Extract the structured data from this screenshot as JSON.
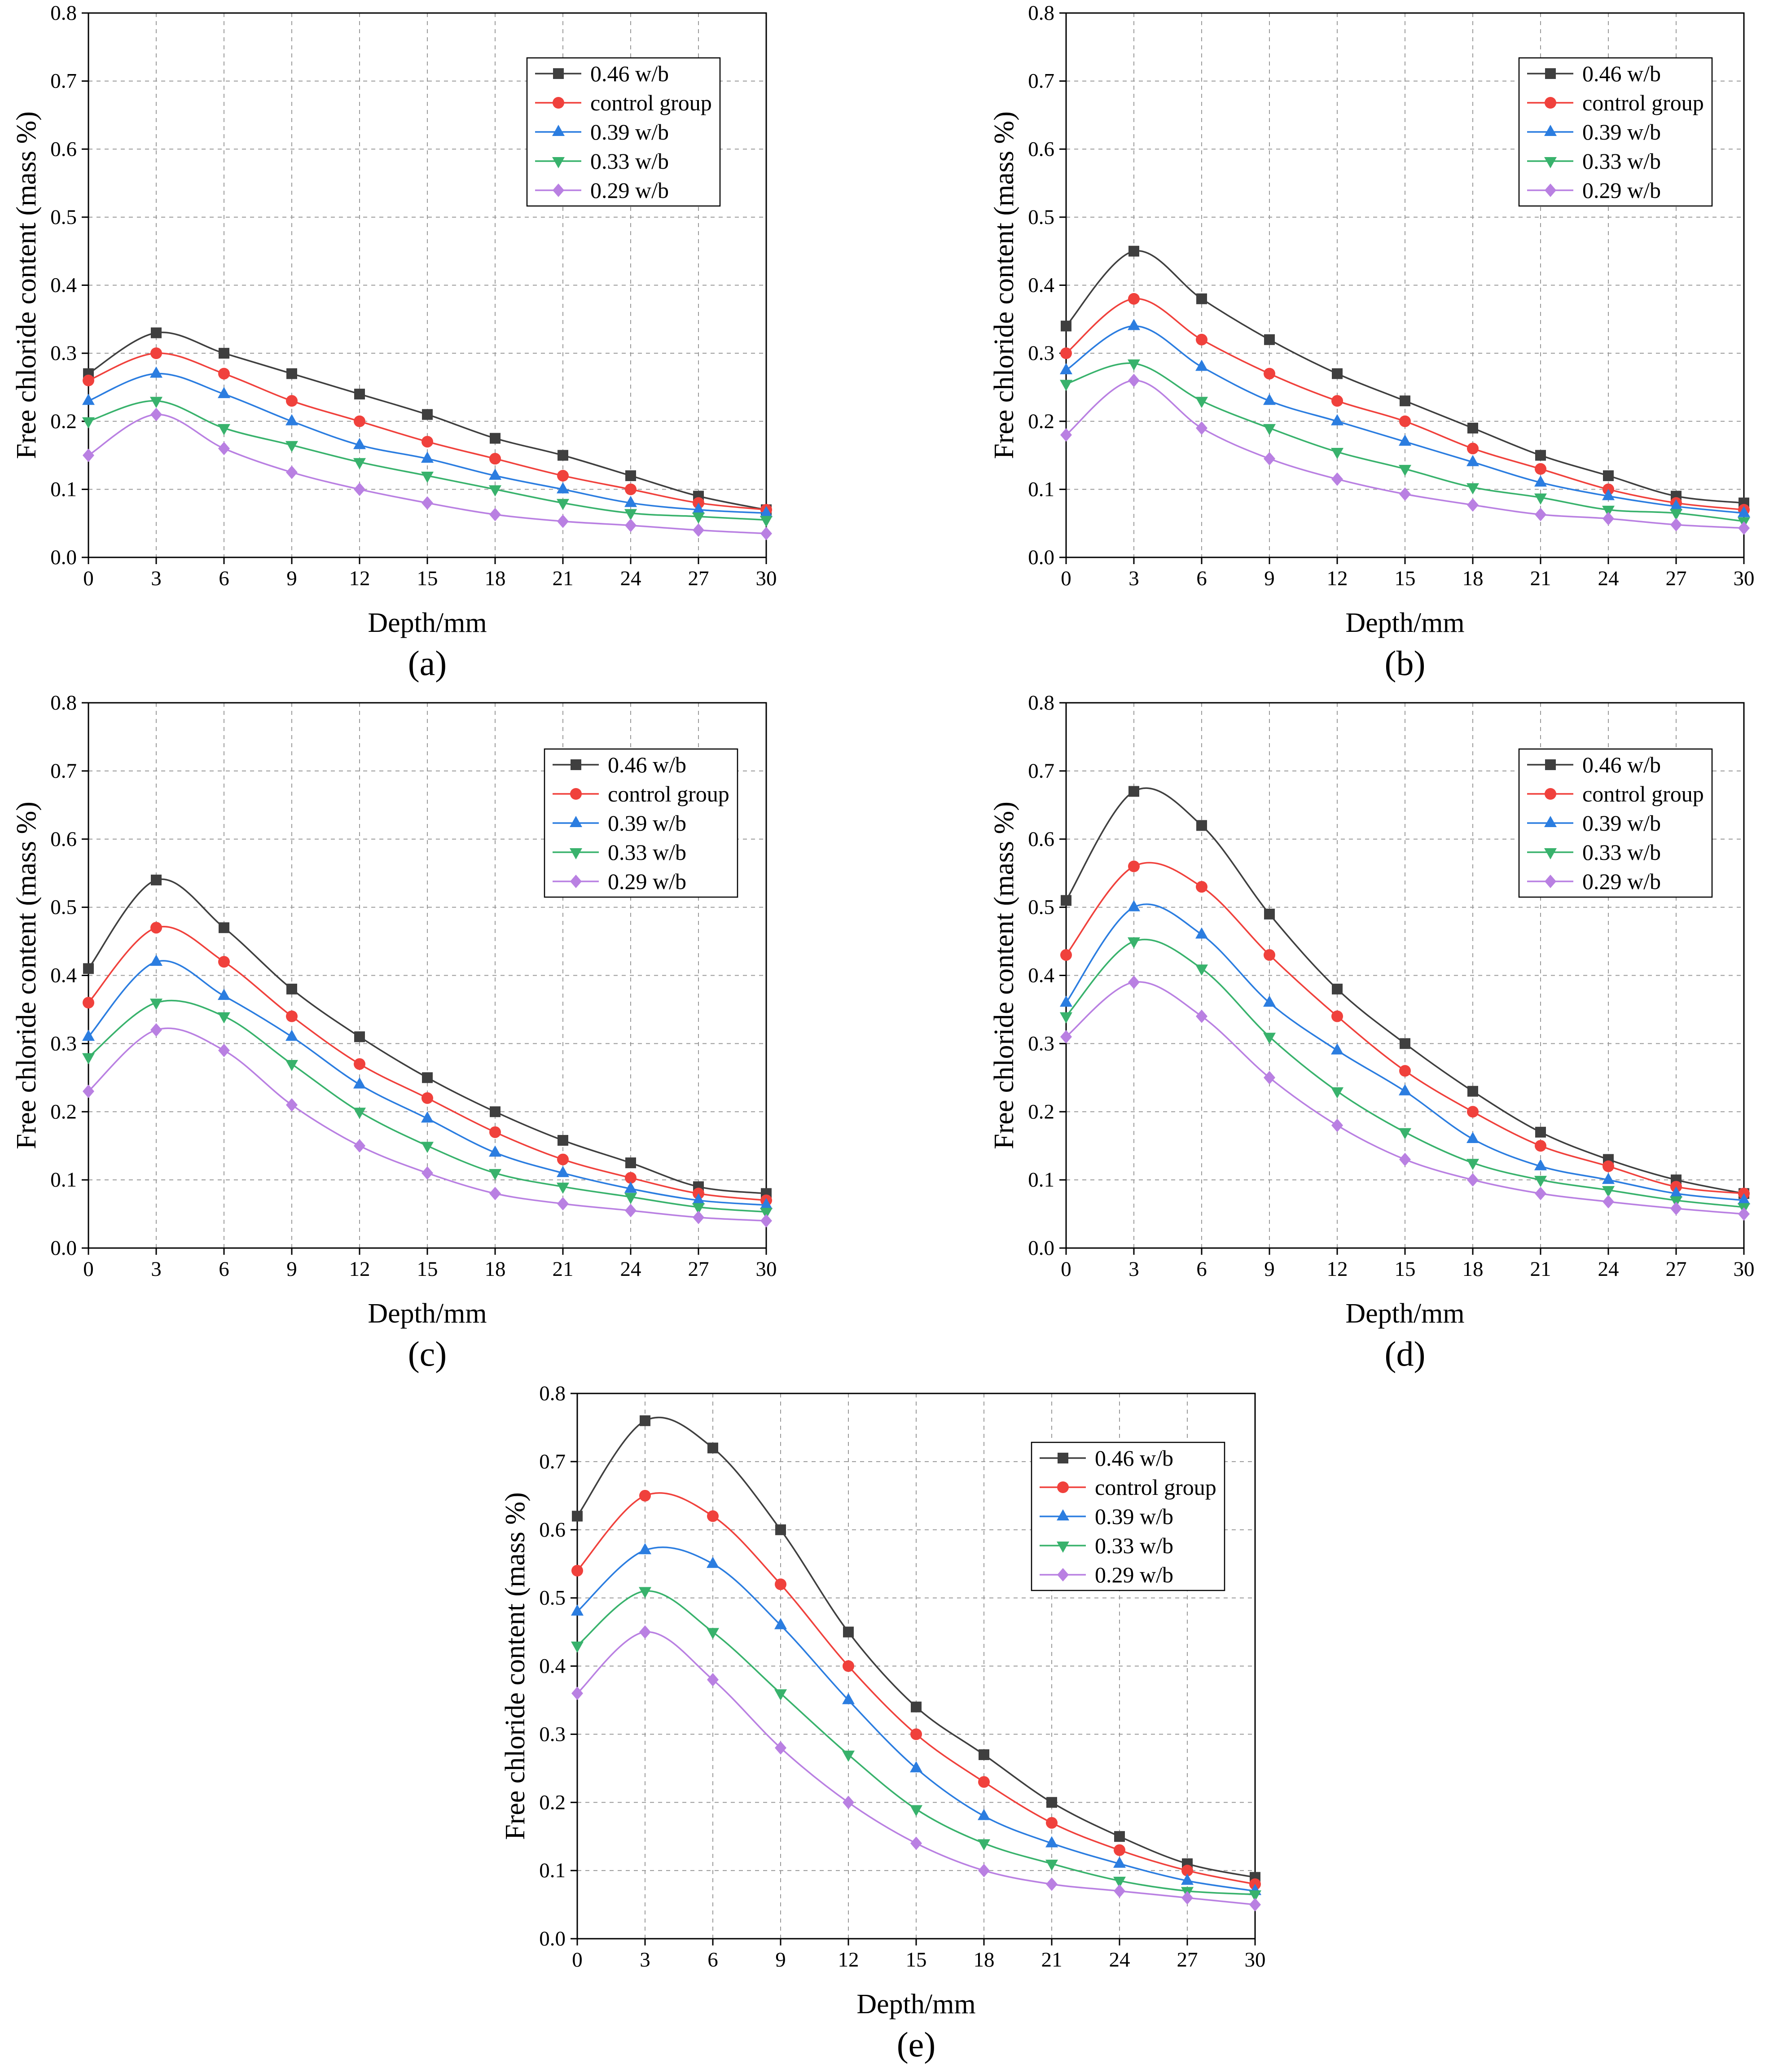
{
  "chart_data": [
    {
      "panel": "(a)",
      "type": "line",
      "xlabel": "Depth/mm",
      "ylabel": "Free chloride content (mass %)",
      "xlim": [
        0,
        30
      ],
      "ylim": [
        0,
        0.8
      ],
      "xticks": [
        "0",
        "3",
        "6",
        "9",
        "12",
        "15",
        "18",
        "21",
        "24",
        "27",
        "30"
      ],
      "yticks": [
        "0.0",
        "0.1",
        "0.2",
        "0.3",
        "0.4",
        "0.5",
        "0.6",
        "0.7",
        "0.8"
      ],
      "grid": true,
      "legend_position": "top-right",
      "x": [
        0,
        3,
        6,
        9,
        12,
        15,
        18,
        21,
        24,
        27,
        30
      ],
      "series": [
        {
          "name": "0.46 w/b",
          "marker": "square",
          "color": "#3f3f3f",
          "values": [
            0.27,
            0.33,
            0.3,
            0.27,
            0.24,
            0.21,
            0.175,
            0.15,
            0.12,
            0.09,
            0.07
          ]
        },
        {
          "name": "control group",
          "marker": "circle",
          "color": "#f0413c",
          "values": [
            0.26,
            0.3,
            0.27,
            0.23,
            0.2,
            0.17,
            0.145,
            0.12,
            0.1,
            0.08,
            0.07
          ]
        },
        {
          "name": "0.39 w/b",
          "marker": "triangle-up",
          "color": "#2b7de0",
          "values": [
            0.23,
            0.27,
            0.24,
            0.2,
            0.165,
            0.145,
            0.12,
            0.1,
            0.08,
            0.07,
            0.065
          ]
        },
        {
          "name": "0.33 w/b",
          "marker": "triangle-down",
          "color": "#38b26c",
          "values": [
            0.2,
            0.23,
            0.19,
            0.165,
            0.14,
            0.12,
            0.1,
            0.08,
            0.065,
            0.06,
            0.055
          ]
        },
        {
          "name": "0.29 w/b",
          "marker": "diamond",
          "color": "#b980e2",
          "values": [
            0.15,
            0.21,
            0.16,
            0.125,
            0.1,
            0.08,
            0.063,
            0.053,
            0.047,
            0.04,
            0.035
          ]
        }
      ]
    },
    {
      "panel": "(b)",
      "type": "line",
      "xlabel": "Depth/mm",
      "ylabel": "Free chloride content (mass %)",
      "xlim": [
        0,
        30
      ],
      "ylim": [
        0,
        0.8
      ],
      "xticks": [
        "0",
        "3",
        "6",
        "9",
        "12",
        "15",
        "18",
        "21",
        "24",
        "27",
        "30"
      ],
      "yticks": [
        "0.0",
        "0.1",
        "0.2",
        "0.3",
        "0.4",
        "0.5",
        "0.6",
        "0.7",
        "0.8"
      ],
      "grid": true,
      "legend_position": "top-right",
      "x": [
        0,
        3,
        6,
        9,
        12,
        15,
        18,
        21,
        24,
        27,
        30
      ],
      "series": [
        {
          "name": "0.46 w/b",
          "marker": "square",
          "color": "#3f3f3f",
          "values": [
            0.34,
            0.45,
            0.38,
            0.32,
            0.27,
            0.23,
            0.19,
            0.15,
            0.12,
            0.09,
            0.08
          ]
        },
        {
          "name": "control group",
          "marker": "circle",
          "color": "#f0413c",
          "values": [
            0.3,
            0.38,
            0.32,
            0.27,
            0.23,
            0.2,
            0.16,
            0.13,
            0.1,
            0.08,
            0.07
          ]
        },
        {
          "name": "0.39 w/b",
          "marker": "triangle-up",
          "color": "#2b7de0",
          "values": [
            0.275,
            0.34,
            0.28,
            0.23,
            0.2,
            0.17,
            0.14,
            0.11,
            0.09,
            0.075,
            0.065
          ]
        },
        {
          "name": "0.33 w/b",
          "marker": "triangle-down",
          "color": "#38b26c",
          "values": [
            0.255,
            0.285,
            0.23,
            0.19,
            0.155,
            0.13,
            0.103,
            0.088,
            0.07,
            0.065,
            0.053
          ]
        },
        {
          "name": "0.29 w/b",
          "marker": "diamond",
          "color": "#b980e2",
          "values": [
            0.18,
            0.26,
            0.19,
            0.145,
            0.115,
            0.093,
            0.077,
            0.063,
            0.057,
            0.048,
            0.043
          ]
        }
      ]
    },
    {
      "panel": "(c)",
      "type": "line",
      "xlabel": "Depth/mm",
      "ylabel": "Free chloride content (mass %)",
      "xlim": [
        0,
        30
      ],
      "ylim": [
        0,
        0.8
      ],
      "xticks": [
        "0",
        "3",
        "6",
        "9",
        "12",
        "15",
        "18",
        "21",
        "24",
        "27",
        "30"
      ],
      "yticks": [
        "0.0",
        "0.1",
        "0.2",
        "0.3",
        "0.4",
        "0.5",
        "0.6",
        "0.7",
        "0.8"
      ],
      "grid": true,
      "legend_position": "top-right",
      "x": [
        0,
        3,
        6,
        9,
        12,
        15,
        18,
        21,
        24,
        27,
        30
      ],
      "series": [
        {
          "name": "0.46 w/b",
          "marker": "square",
          "color": "#3f3f3f",
          "values": [
            0.41,
            0.54,
            0.47,
            0.38,
            0.31,
            0.25,
            0.2,
            0.158,
            0.125,
            0.09,
            0.08
          ]
        },
        {
          "name": "control group",
          "marker": "circle",
          "color": "#f0413c",
          "values": [
            0.36,
            0.47,
            0.42,
            0.34,
            0.27,
            0.22,
            0.17,
            0.13,
            0.103,
            0.08,
            0.07
          ]
        },
        {
          "name": "0.39 w/b",
          "marker": "triangle-up",
          "color": "#2b7de0",
          "values": [
            0.31,
            0.42,
            0.37,
            0.31,
            0.24,
            0.19,
            0.14,
            0.11,
            0.087,
            0.07,
            0.063
          ]
        },
        {
          "name": "0.33 w/b",
          "marker": "triangle-down",
          "color": "#38b26c",
          "values": [
            0.28,
            0.36,
            0.34,
            0.27,
            0.2,
            0.15,
            0.11,
            0.09,
            0.075,
            0.06,
            0.053
          ]
        },
        {
          "name": "0.29 w/b",
          "marker": "diamond",
          "color": "#b980e2",
          "values": [
            0.23,
            0.32,
            0.29,
            0.21,
            0.15,
            0.11,
            0.08,
            0.065,
            0.055,
            0.045,
            0.04
          ]
        }
      ]
    },
    {
      "panel": "(d)",
      "type": "line",
      "xlabel": "Depth/mm",
      "ylabel": "Free chloride content (mass %)",
      "xlim": [
        0,
        30
      ],
      "ylim": [
        0,
        0.8
      ],
      "xticks": [
        "0",
        "3",
        "6",
        "9",
        "12",
        "15",
        "18",
        "21",
        "24",
        "27",
        "30"
      ],
      "yticks": [
        "0.0",
        "0.1",
        "0.2",
        "0.3",
        "0.4",
        "0.5",
        "0.6",
        "0.7",
        "0.8"
      ],
      "grid": true,
      "legend_position": "top-right",
      "x": [
        0,
        3,
        6,
        9,
        12,
        15,
        18,
        21,
        24,
        27,
        30
      ],
      "series": [
        {
          "name": "0.46 w/b",
          "marker": "square",
          "color": "#3f3f3f",
          "values": [
            0.51,
            0.67,
            0.62,
            0.49,
            0.38,
            0.3,
            0.23,
            0.17,
            0.13,
            0.1,
            0.08
          ]
        },
        {
          "name": "control group",
          "marker": "circle",
          "color": "#f0413c",
          "values": [
            0.43,
            0.56,
            0.53,
            0.43,
            0.34,
            0.26,
            0.2,
            0.15,
            0.12,
            0.09,
            0.08
          ]
        },
        {
          "name": "0.39 w/b",
          "marker": "triangle-up",
          "color": "#2b7de0",
          "values": [
            0.36,
            0.5,
            0.46,
            0.36,
            0.29,
            0.23,
            0.16,
            0.12,
            0.1,
            0.08,
            0.07
          ]
        },
        {
          "name": "0.33 w/b",
          "marker": "triangle-down",
          "color": "#38b26c",
          "values": [
            0.34,
            0.45,
            0.41,
            0.31,
            0.23,
            0.17,
            0.125,
            0.1,
            0.085,
            0.07,
            0.06
          ]
        },
        {
          "name": "0.29 w/b",
          "marker": "diamond",
          "color": "#b980e2",
          "values": [
            0.31,
            0.39,
            0.34,
            0.25,
            0.18,
            0.13,
            0.1,
            0.08,
            0.068,
            0.058,
            0.05
          ]
        }
      ]
    },
    {
      "panel": "(e)",
      "type": "line",
      "xlabel": "Depth/mm",
      "ylabel": "Free chloride content (mass %)",
      "xlim": [
        0,
        30
      ],
      "ylim": [
        0,
        0.8
      ],
      "xticks": [
        "0",
        "3",
        "6",
        "9",
        "12",
        "15",
        "18",
        "21",
        "24",
        "27",
        "30"
      ],
      "yticks": [
        "0.0",
        "0.1",
        "0.2",
        "0.3",
        "0.4",
        "0.5",
        "0.6",
        "0.7",
        "0.8"
      ],
      "grid": true,
      "legend_position": "top-right",
      "x": [
        0,
        3,
        6,
        9,
        12,
        15,
        18,
        21,
        24,
        27,
        30
      ],
      "series": [
        {
          "name": "0.46 w/b",
          "marker": "square",
          "color": "#3f3f3f",
          "values": [
            0.62,
            0.76,
            0.72,
            0.6,
            0.45,
            0.34,
            0.27,
            0.2,
            0.15,
            0.11,
            0.09
          ]
        },
        {
          "name": "control group",
          "marker": "circle",
          "color": "#f0413c",
          "values": [
            0.54,
            0.65,
            0.62,
            0.52,
            0.4,
            0.3,
            0.23,
            0.17,
            0.13,
            0.1,
            0.08
          ]
        },
        {
          "name": "0.39 w/b",
          "marker": "triangle-up",
          "color": "#2b7de0",
          "values": [
            0.48,
            0.57,
            0.55,
            0.46,
            0.35,
            0.25,
            0.18,
            0.14,
            0.11,
            0.085,
            0.07
          ]
        },
        {
          "name": "0.33 w/b",
          "marker": "triangle-down",
          "color": "#38b26c",
          "values": [
            0.43,
            0.51,
            0.45,
            0.36,
            0.27,
            0.19,
            0.14,
            0.11,
            0.085,
            0.07,
            0.065
          ]
        },
        {
          "name": "0.29 w/b",
          "marker": "diamond",
          "color": "#b980e2",
          "values": [
            0.36,
            0.45,
            0.38,
            0.28,
            0.2,
            0.14,
            0.1,
            0.08,
            0.07,
            0.06,
            0.05
          ]
        }
      ]
    }
  ]
}
